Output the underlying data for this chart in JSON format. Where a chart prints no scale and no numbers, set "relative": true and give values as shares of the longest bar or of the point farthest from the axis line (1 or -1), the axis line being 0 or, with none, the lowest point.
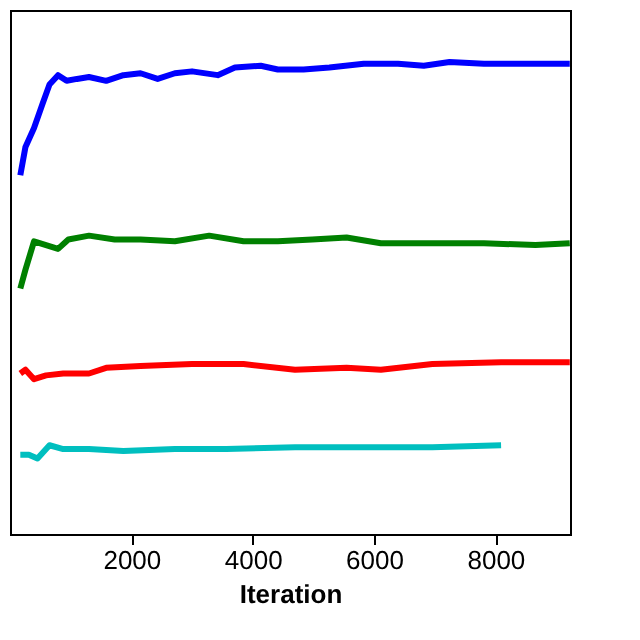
{
  "chart_data": {
    "type": "line",
    "relative": true,
    "xlabel": "Iteration",
    "xlim": [
      0,
      9230
    ],
    "xticks": [
      2000,
      4000,
      6000,
      8000
    ],
    "grid": false,
    "line_style": "solid",
    "marker": "none",
    "series": [
      {
        "color": "#0000ff",
        "x": [
          170,
          255,
          396,
          538,
          651,
          792,
          934,
          1104,
          1302,
          1585,
          1868,
          2151,
          2434,
          2717,
          3000,
          3424,
          3707,
          4132,
          4415,
          4839,
          5264,
          5830,
          6396,
          6820,
          7245,
          7811,
          8377,
          8943,
          9226
        ],
        "values": [
          0.76,
          0.82,
          0.86,
          0.912,
          0.952,
          0.972,
          0.96,
          0.964,
          0.968,
          0.96,
          0.972,
          0.976,
          0.964,
          0.976,
          0.98,
          0.972,
          0.988,
          0.992,
          0.984,
          0.984,
          0.988,
          0.996,
          0.996,
          0.992,
          1,
          0.996,
          0.996,
          0.996,
          0.996
        ]
      },
      {
        "color": "#008000",
        "x": [
          170,
          255,
          396,
          594,
          792,
          962,
          1302,
          1726,
          2151,
          2717,
          3283,
          3849,
          4415,
          4981,
          5547,
          6113,
          6962,
          7811,
          8660,
          9226
        ],
        "values": [
          0.52,
          0.56,
          0.62,
          0.612,
          0.604,
          0.624,
          0.632,
          0.624,
          0.624,
          0.62,
          0.632,
          0.62,
          0.62,
          0.624,
          0.628,
          0.616,
          0.616,
          0.616,
          0.612,
          0.616
        ]
      },
      {
        "color": "#ff0000",
        "x": [
          170,
          255,
          396,
          594,
          877,
          1302,
          1585,
          2151,
          3000,
          3849,
          4698,
          5547,
          6113,
          6962,
          8094,
          9226
        ],
        "values": [
          0.34,
          0.348,
          0.328,
          0.336,
          0.34,
          0.34,
          0.352,
          0.356,
          0.36,
          0.36,
          0.348,
          0.352,
          0.348,
          0.36,
          0.364,
          0.364
        ]
      },
      {
        "color": "#00bfbf",
        "x": [
          170,
          311,
          453,
          651,
          877,
          1302,
          1868,
          2717,
          3566,
          4698,
          5830,
          6962,
          8094
        ],
        "values": [
          0.168,
          0.168,
          0.16,
          0.188,
          0.18,
          0.18,
          0.176,
          0.18,
          0.18,
          0.184,
          0.184,
          0.184,
          0.188
        ]
      }
    ]
  }
}
